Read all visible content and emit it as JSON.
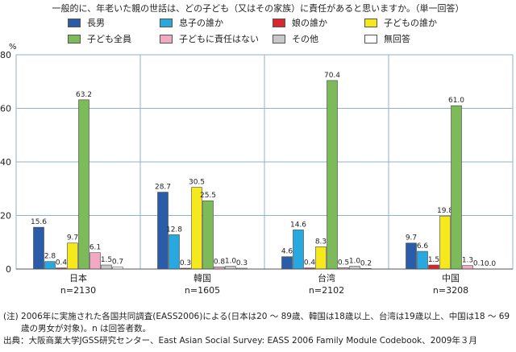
{
  "question": "一般的に、年老いた親の世話は、どの子ども（又はその家族）に責任があると思いますか。（単一回答）",
  "chart_data": {
    "type": "bar",
    "ylabel": "%",
    "ylim": [
      0,
      80
    ],
    "yticks": [
      0,
      20,
      40,
      60,
      80
    ],
    "categories": [
      "日本",
      "韓国",
      "台湾",
      "中国"
    ],
    "category_n": [
      "n=2130",
      "n=1605",
      "n=2102",
      "n=3208"
    ],
    "series": [
      {
        "name": "長男",
        "color": "#2a5ca8",
        "values": [
          15.6,
          28.7,
          4.6,
          9.7
        ]
      },
      {
        "name": "息子の誰か",
        "color": "#29a8e0",
        "values": [
          2.8,
          12.8,
          14.6,
          6.6
        ]
      },
      {
        "name": "娘の誰か",
        "color": "#d7282f",
        "values": [
          0.4,
          0.3,
          0.4,
          1.5
        ]
      },
      {
        "name": "子どもの誰か",
        "color": "#f5e81c",
        "values": [
          9.7,
          30.5,
          8.3,
          19.8
        ]
      },
      {
        "name": "子ども全員",
        "color": "#7dbb5a",
        "values": [
          63.2,
          25.5,
          70.4,
          61.0
        ]
      },
      {
        "name": "子どもに責任はない",
        "color": "#f2a9c4",
        "values": [
          6.1,
          0.8,
          0.5,
          1.3
        ]
      },
      {
        "name": "その他",
        "color": "#c8c8c8",
        "values": [
          1.5,
          1.0,
          1.0,
          0.1
        ]
      },
      {
        "name": "無回答",
        "color": "#ffffff",
        "values": [
          0.7,
          0.3,
          0.2,
          0.0
        ]
      }
    ],
    "value_labels": [
      [
        "15.6",
        "2.8",
        "0.4",
        "9.7",
        "63.2",
        "6.1",
        "1.5",
        "0.7"
      ],
      [
        "28.7",
        "12.8",
        "0.3",
        "30.5",
        "25.5",
        "0.8",
        "1.0",
        "0.3"
      ],
      [
        "4.6",
        "14.6",
        "0.4",
        "8.3",
        "70.4",
        "0.5",
        "1.0",
        "0.2"
      ],
      [
        "9.7",
        "6.6",
        "1.5",
        "19.8",
        "61.0",
        "1.3",
        "0.1",
        "0.0"
      ]
    ]
  },
  "notes": {
    "note_line1": "(注) 2006年に実施された各国共同調査(EASS2006)による(日本は20 ～ 89歳、韓国は18歳以上、台湾は19歳以上、中国は18 ～ 69",
    "note_line2": "歳の男女が対象)。n は回答者数。",
    "source": "出典：大阪商業大学JGSS研究センター、East Asian Social Survey: EASS 2006 Family Module Codebook、2009年３月"
  }
}
